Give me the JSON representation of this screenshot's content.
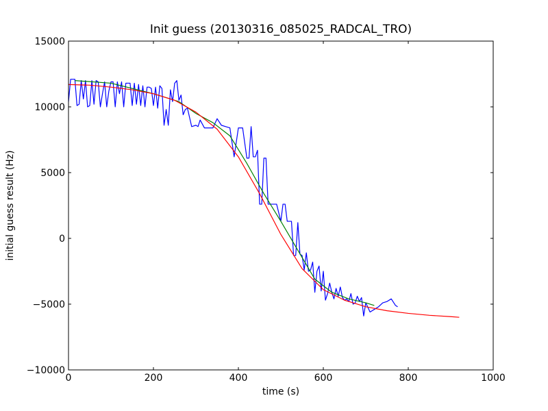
{
  "chart_data": {
    "type": "line",
    "title": "Init guess (20130316_085025_RADCAL_TRO)",
    "xlabel": "time (s)",
    "ylabel": "initial guess result (Hz)",
    "xlim": [
      0,
      1000
    ],
    "ylim": [
      -10000,
      15000
    ],
    "xticks": [
      0,
      200,
      400,
      600,
      800,
      1000
    ],
    "yticks": [
      -10000,
      -5000,
      0,
      5000,
      10000,
      15000
    ],
    "grid": false,
    "series": [
      {
        "color": "#0000ff",
        "x": [
          0,
          5,
          10,
          15,
          20,
          25,
          30,
          35,
          40,
          45,
          50,
          55,
          60,
          65,
          70,
          75,
          80,
          85,
          90,
          95,
          100,
          105,
          110,
          115,
          120,
          125,
          130,
          135,
          140,
          145,
          150,
          155,
          160,
          165,
          170,
          175,
          180,
          185,
          190,
          195,
          200,
          205,
          210,
          215,
          220,
          225,
          230,
          235,
          240,
          245,
          250,
          255,
          260,
          265,
          270,
          275,
          280,
          290,
          300,
          305,
          310,
          320,
          330,
          340,
          350,
          360,
          370,
          380,
          390,
          400,
          410,
          420,
          425,
          430,
          435,
          440,
          445,
          450,
          455,
          460,
          465,
          470,
          480,
          490,
          500,
          505,
          510,
          515,
          520,
          525,
          530,
          535,
          540,
          545,
          550,
          555,
          560,
          565,
          570,
          575,
          580,
          585,
          590,
          595,
          600,
          605,
          610,
          615,
          620,
          625,
          630,
          635,
          640,
          645,
          650,
          655,
          660,
          665,
          670,
          675,
          680,
          685,
          690,
          695,
          700,
          710,
          720,
          730,
          740,
          750,
          760,
          770,
          775
        ],
        "y": [
          10400,
          12100,
          12100,
          12100,
          10100,
          10200,
          12000,
          10600,
          12000,
          10000,
          10100,
          12000,
          10200,
          12000,
          11900,
          10000,
          11000,
          11900,
          10000,
          11200,
          11900,
          11900,
          10000,
          11900,
          11000,
          11900,
          10000,
          11800,
          11800,
          11800,
          10100,
          11800,
          10200,
          11700,
          10100,
          11600,
          10000,
          11500,
          11500,
          11400,
          10100,
          11500,
          9900,
          11600,
          11400,
          8600,
          9800,
          8600,
          11300,
          10400,
          11800,
          12000,
          10500,
          10900,
          9400,
          9800,
          9900,
          8500,
          8600,
          8500,
          9000,
          8400,
          8400,
          8400,
          9100,
          8600,
          8500,
          8400,
          6200,
          8400,
          8400,
          6100,
          6100,
          8500,
          6200,
          6200,
          6700,
          2600,
          2600,
          6100,
          6100,
          2600,
          2600,
          2600,
          1300,
          2600,
          2600,
          1300,
          1300,
          1300,
          -1300,
          -1300,
          1200,
          -1200,
          -1300,
          -2400,
          -1100,
          -2500,
          -2400,
          -1800,
          -4100,
          -2500,
          -2100,
          -4000,
          -2500,
          -4700,
          -4200,
          -3400,
          -4100,
          -4600,
          -3800,
          -4400,
          -3700,
          -4500,
          -4700,
          -4600,
          -4800,
          -4200,
          -5000,
          -4900,
          -4400,
          -4800,
          -4500,
          -5900,
          -4900,
          -5600,
          -5400,
          -5200,
          -4900,
          -4800,
          -4600,
          -5100,
          -5200
        ]
      },
      {
        "color": "#008000",
        "x": [
          15,
          100,
          200,
          260,
          300,
          340,
          380,
          420,
          460,
          500,
          540,
          580,
          620,
          660,
          700,
          720
        ],
        "y": [
          12000,
          11800,
          11000,
          10400,
          9500,
          8800,
          7800,
          5700,
          3400,
          1300,
          -900,
          -3100,
          -4100,
          -4600,
          -4900,
          -5100
        ]
      },
      {
        "color": "#ff0000",
        "x": [
          0,
          50,
          100,
          150,
          200,
          250,
          300,
          350,
          400,
          450,
          500,
          550,
          600,
          650,
          700,
          750,
          800,
          850,
          900,
          920
        ],
        "y": [
          11700,
          11650,
          11500,
          11300,
          11000,
          10500,
          9600,
          8300,
          6200,
          3400,
          300,
          -2300,
          -3900,
          -4700,
          -5200,
          -5500,
          -5700,
          -5850,
          -5950,
          -6000
        ]
      }
    ]
  }
}
